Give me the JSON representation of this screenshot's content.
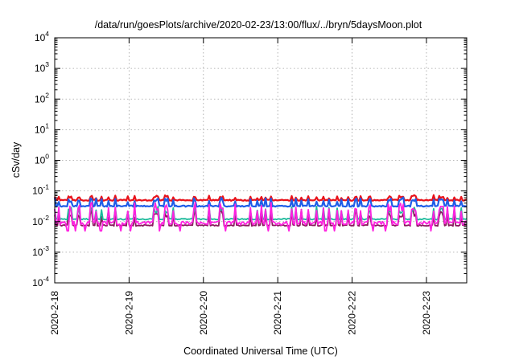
{
  "chart_data": {
    "type": "line",
    "title": "/data/run/goesPlots/archive/2020-02-23/13:00/flux/../bryn/5daysMoon.plot",
    "xlabel": "Coordinated Universal Time (UTC)",
    "ylabel": "cSv/day",
    "yscale": "log",
    "ylim": [
      0.0001,
      10000
    ],
    "xlim": [
      "2020-02-18 00:00",
      "2020-02-23 13:00"
    ],
    "y_ticks": [
      {
        "base": "10",
        "exp": "-4",
        "value": 0.0001
      },
      {
        "base": "10",
        "exp": "-3",
        "value": 0.001
      },
      {
        "base": "10",
        "exp": "-2",
        "value": 0.01
      },
      {
        "base": "10",
        "exp": "-1",
        "value": 0.1
      },
      {
        "base": "10",
        "exp": "0",
        "value": 1
      },
      {
        "base": "10",
        "exp": "1",
        "value": 10
      },
      {
        "base": "10",
        "exp": "2",
        "value": 100
      },
      {
        "base": "10",
        "exp": "3",
        "value": 1000
      },
      {
        "base": "10",
        "exp": "4",
        "value": 10000
      }
    ],
    "x_ticks": [
      "2020-2-18",
      "2020-2-19",
      "2020-2-20",
      "2020-2-21",
      "2020-2-22",
      "2020-2-23"
    ],
    "grid": true,
    "legend": "none",
    "series": [
      {
        "color": "#e8121a",
        "base": 0.05,
        "peak": 0.07
      },
      {
        "color": "#8b1a5e",
        "base": 0.0075,
        "peak": 0.025
      },
      {
        "color": "#1ab99a",
        "base": 0.012,
        "peak": 0.03
      },
      {
        "color": "#1e5de8",
        "base": 0.032,
        "peak": 0.06
      },
      {
        "color": "#ff22e0",
        "base": 0.009,
        "peak": 0.03
      }
    ]
  }
}
